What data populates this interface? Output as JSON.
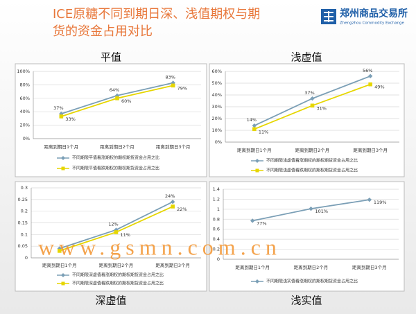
{
  "header": {
    "title_lines": [
      "ICE原糖不同到期日深、浅值期权与期",
      "货的资金占用对比"
    ],
    "logo_name": "郑州商品交易所",
    "logo_subtitle": "Zhengzhou Commodity Exchange"
  },
  "watermark": "www.gsmn.com.cn",
  "chart_data": [
    {
      "type": "line",
      "title": "平值",
      "categories": [
        "距离到期日1个月",
        "距离到期日2个月",
        "距离到期日3个月"
      ],
      "ylim": [
        0,
        100
      ],
      "yticks": [
        {
          "value": 0,
          "label": "0%"
        },
        {
          "value": 20,
          "label": "20%"
        },
        {
          "value": 40,
          "label": "40%"
        },
        {
          "value": 60,
          "label": "60%"
        },
        {
          "value": 80,
          "label": "80%"
        },
        {
          "value": 100,
          "label": "100%"
        }
      ],
      "grid": true,
      "series": [
        {
          "name": "不同期限平值看涨期权的期权期货资金占用之比",
          "color": "#7b9fb6",
          "values": [
            37,
            64,
            83
          ],
          "value_labels": [
            "37%",
            "64%",
            "83%"
          ]
        },
        {
          "name": "不同期限平值看跌期权的期权期货资金占用之比",
          "color": "#e6d600",
          "values": [
            33,
            60,
            79
          ],
          "value_labels": [
            "33%",
            "60%",
            "79%"
          ]
        }
      ]
    },
    {
      "type": "line",
      "title": "浅虚值",
      "categories": [
        "距离到期日1个月",
        "距离到期日2个月",
        "距离到期日3个月"
      ],
      "ylim": [
        0,
        60
      ],
      "yticks": [
        {
          "value": 0,
          "label": "0%"
        },
        {
          "value": 10,
          "label": "10%"
        },
        {
          "value": 20,
          "label": "20%"
        },
        {
          "value": 30,
          "label": "30%"
        },
        {
          "value": 40,
          "label": "40%"
        },
        {
          "value": 50,
          "label": "50%"
        },
        {
          "value": 60,
          "label": "60%"
        }
      ],
      "grid": true,
      "series": [
        {
          "name": "不同期限浅虚值看涨期权的期权期货资金占用之比",
          "color": "#7b9fb6",
          "values": [
            14,
            37,
            56
          ],
          "value_labels": [
            "14%",
            "37%",
            "56%"
          ]
        },
        {
          "name": "不同期限浅虚值看跌期权的期权期货资金占用之比",
          "color": "#e6d600",
          "values": [
            11,
            31,
            49
          ],
          "value_labels": [
            "11%",
            "31%",
            "49%"
          ]
        }
      ]
    },
    {
      "type": "line",
      "title": "深虚值",
      "categories": [
        "距离到期日1个月",
        "距离到期日2个月",
        "距离到期日3个月"
      ],
      "ylim": [
        0,
        0.3
      ],
      "yticks": [
        0,
        0.05,
        0.1,
        0.15,
        0.2,
        0.25,
        0.3
      ],
      "grid": true,
      "series": [
        {
          "name": "不同期限深虚值看涨期权的期权期货资金占用之比",
          "color": "#7b9fb6",
          "values": [
            0.04,
            0.12,
            0.24
          ],
          "value_labels": [
            null,
            "12%",
            "24%"
          ]
        },
        {
          "name": "不同期限深虚值看跌期权的期权期货资金占用之比",
          "color": "#e6d600",
          "values": [
            0.03,
            0.11,
            0.22
          ],
          "value_labels": [
            null,
            "11%",
            "22%"
          ]
        }
      ]
    },
    {
      "type": "line",
      "title": "浅实值",
      "categories": [
        "距离到期日1个月",
        "距离到期日2个月",
        "距离到期日3个月"
      ],
      "ylim": [
        0,
        1.4
      ],
      "yticks": [
        0,
        0.2,
        0.4,
        0.6,
        0.8,
        1,
        1.2,
        1.4
      ],
      "grid": true,
      "series": [
        {
          "name": "不同期限浅实值看涨期权的期权期货资金占用之比",
          "color": "#7b9fb6",
          "values": [
            0.77,
            1.01,
            1.19
          ],
          "value_labels": [
            "77%",
            "101%",
            "119%"
          ]
        }
      ]
    }
  ]
}
